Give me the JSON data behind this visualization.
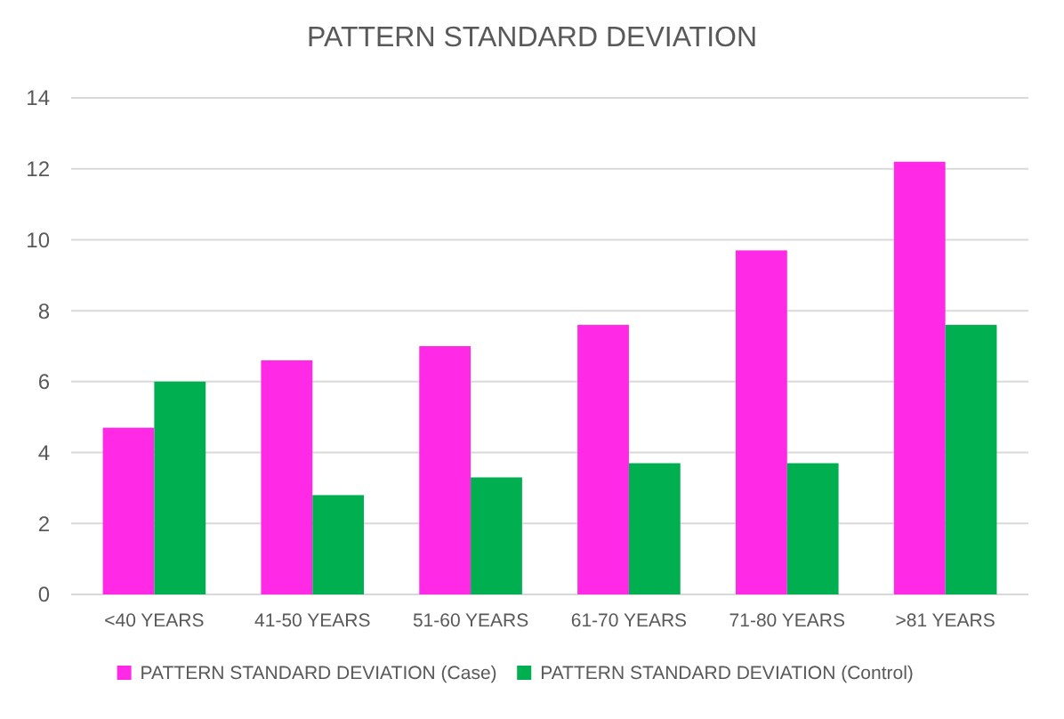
{
  "chart_data": {
    "type": "bar",
    "title": "PATTERN STANDARD DEVIATION",
    "categories": [
      "<40 YEARS",
      "41-50 YEARS",
      "51-60 YEARS",
      "61-70 YEARS",
      "71-80 YEARS",
      ">81 YEARS"
    ],
    "series": [
      {
        "name": "PATTERN STANDARD DEVIATION (Case)",
        "color": "#ff29e6",
        "values": [
          4.7,
          6.6,
          7.0,
          7.6,
          9.7,
          12.2
        ]
      },
      {
        "name": "PATTERN STANDARD DEVIATION (Control)",
        "color": "#00b050",
        "values": [
          6.0,
          2.8,
          3.3,
          3.7,
          3.7,
          7.6
        ]
      }
    ],
    "ylim": [
      0,
      14
    ],
    "yticks": [
      0,
      2,
      4,
      6,
      8,
      10,
      12,
      14
    ],
    "grid": "y",
    "legend": "bottom"
  }
}
